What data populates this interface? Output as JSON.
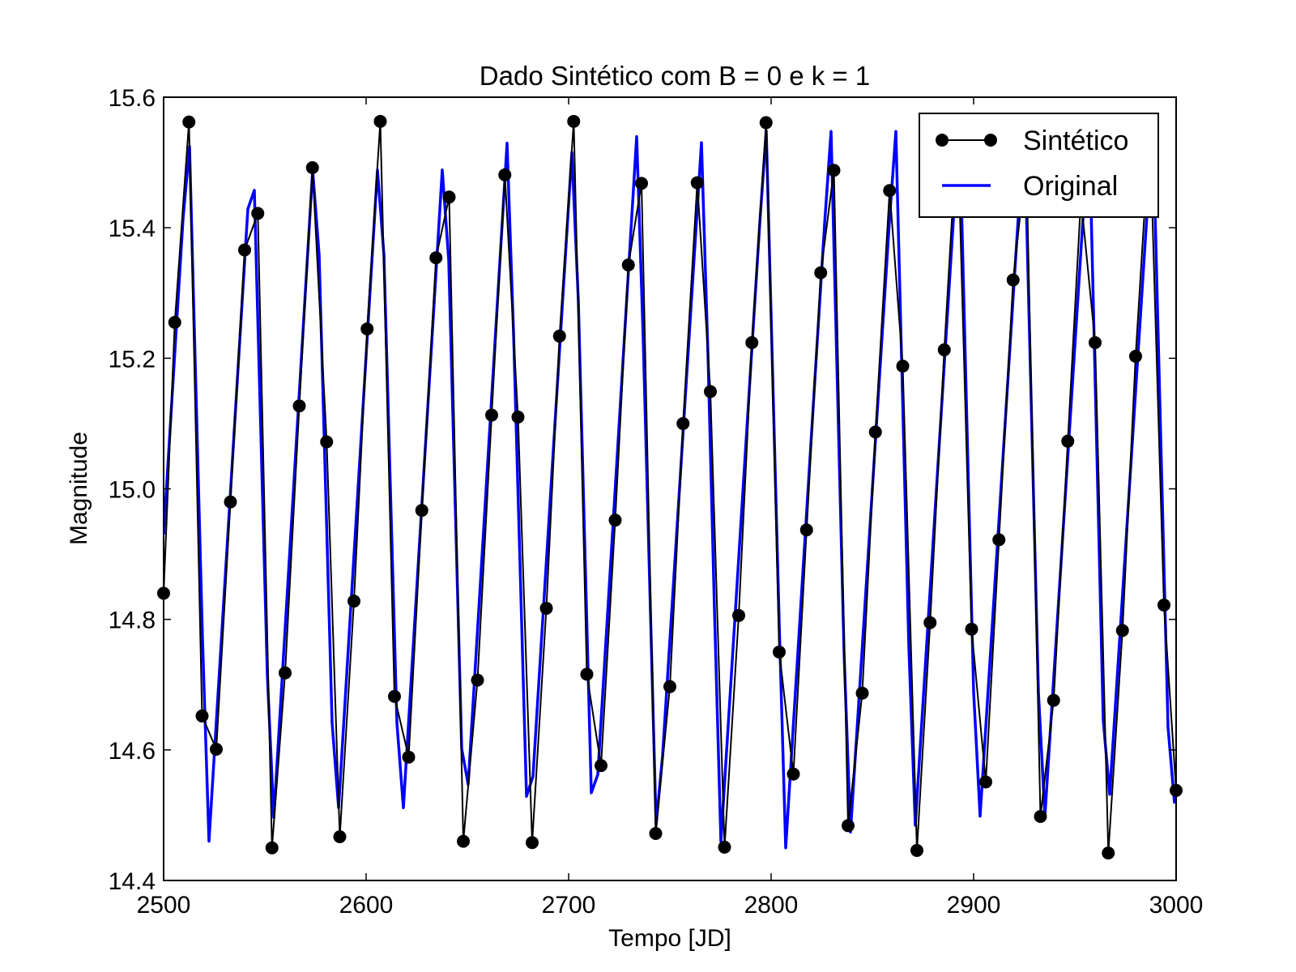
{
  "chart_data": {
    "type": "line",
    "title": "Dado Sintético com B = 0 e k = 1",
    "xlabel": "Tempo [JD]",
    "ylabel": "Magnitude",
    "xlim": [
      2500,
      3000
    ],
    "ylim": [
      14.4,
      15.6
    ],
    "xticks": [
      2500,
      2600,
      2700,
      2800,
      2900,
      3000
    ],
    "xtick_labels": [
      "2500",
      "2600",
      "2700",
      "2800",
      "2900",
      "3000"
    ],
    "yticks": [
      14.4,
      14.6,
      14.8,
      15.0,
      15.2,
      15.4,
      15.6
    ],
    "ytick_labels": [
      "14.4",
      "14.6",
      "14.8",
      "15.0",
      "15.2",
      "15.4",
      "15.6"
    ],
    "grid": false,
    "legend": {
      "position": "top-right"
    },
    "series": [
      {
        "name": "Sintético",
        "style": "line-markers",
        "color": "#000000",
        "x": [
          2500,
          2505.5,
          2512.5,
          2519,
          2526,
          2533,
          2540,
          2546.5,
          2553.5,
          2560,
          2567,
          2573.5,
          2580.5,
          2587,
          2594,
          2600.5,
          2607,
          2614,
          2621,
          2627.5,
          2634.5,
          2641,
          2648,
          2655,
          2662,
          2668.5,
          2675,
          2682,
          2689,
          2695.5,
          2702.5,
          2709,
          2716,
          2723,
          2729.5,
          2736,
          2743,
          2750,
          2756.5,
          2763.5,
          2770,
          2777,
          2784,
          2790.5,
          2797.5,
          2804,
          2811,
          2817.5,
          2824.5,
          2831,
          2838,
          2845,
          2851.5,
          2858.5,
          2865,
          2872,
          2878.5,
          2885.5,
          2892,
          2899,
          2906,
          2912.5,
          2919.5,
          2926,
          2933,
          2939.5,
          2946.5,
          2953,
          2960,
          2966.5,
          2973.5,
          2980,
          2987,
          2994,
          3000
        ],
        "y": [
          14.84,
          15.255,
          15.562,
          14.652,
          14.601,
          14.98,
          15.366,
          15.422,
          14.45,
          14.718,
          15.127,
          15.492,
          15.072,
          14.467,
          14.828,
          15.245,
          15.563,
          14.682,
          14.589,
          14.967,
          15.354,
          15.447,
          14.46,
          14.707,
          15.113,
          15.481,
          15.11,
          14.458,
          14.817,
          15.234,
          15.563,
          14.716,
          14.576,
          14.952,
          15.343,
          15.468,
          14.472,
          14.697,
          15.1,
          15.469,
          15.149,
          14.451,
          14.806,
          15.224,
          15.561,
          14.75,
          14.563,
          14.937,
          15.331,
          15.488,
          14.484,
          14.687,
          15.087,
          15.457,
          15.188,
          14.446,
          14.795,
          15.213,
          15.559,
          14.785,
          14.551,
          14.922,
          15.32,
          15.506,
          14.498,
          14.676,
          15.073,
          15.445,
          15.224,
          14.442,
          14.783,
          15.203,
          15.555,
          14.822,
          14.538
        ]
      },
      {
        "name": "Original",
        "style": "line",
        "color": "#0000ff",
        "period": 32.4,
        "peak_times": [
          2512.5,
          2544,
          2575,
          2607,
          2639,
          2670,
          2702.5,
          2734,
          2766,
          2797.5,
          2829.5,
          2861.5,
          2893,
          2925,
          2957,
          2988.5
        ],
        "min_times": [
          2522,
          2553.5,
          2585,
          2617,
          2648.5,
          2680,
          2712,
          2743.5,
          2775,
          2807,
          2838.5,
          2870.5,
          2902,
          2934,
          2965.5,
          2997.5
        ],
        "max_magnitude": [
          15.56,
          15.55,
          15.56,
          15.56,
          15.56,
          15.55,
          15.56,
          15.56,
          15.55,
          15.56,
          15.56,
          15.56,
          15.56,
          15.56,
          15.56,
          15.56
        ],
        "min_magnitude": [
          14.44,
          14.45,
          14.44,
          14.44,
          14.45,
          14.44,
          14.44,
          14.45,
          14.45,
          14.44,
          14.44,
          14.45,
          14.44,
          14.44,
          14.45,
          14.45
        ],
        "start_magnitude": 14.93,
        "end_magnitude": 14.55
      }
    ]
  }
}
